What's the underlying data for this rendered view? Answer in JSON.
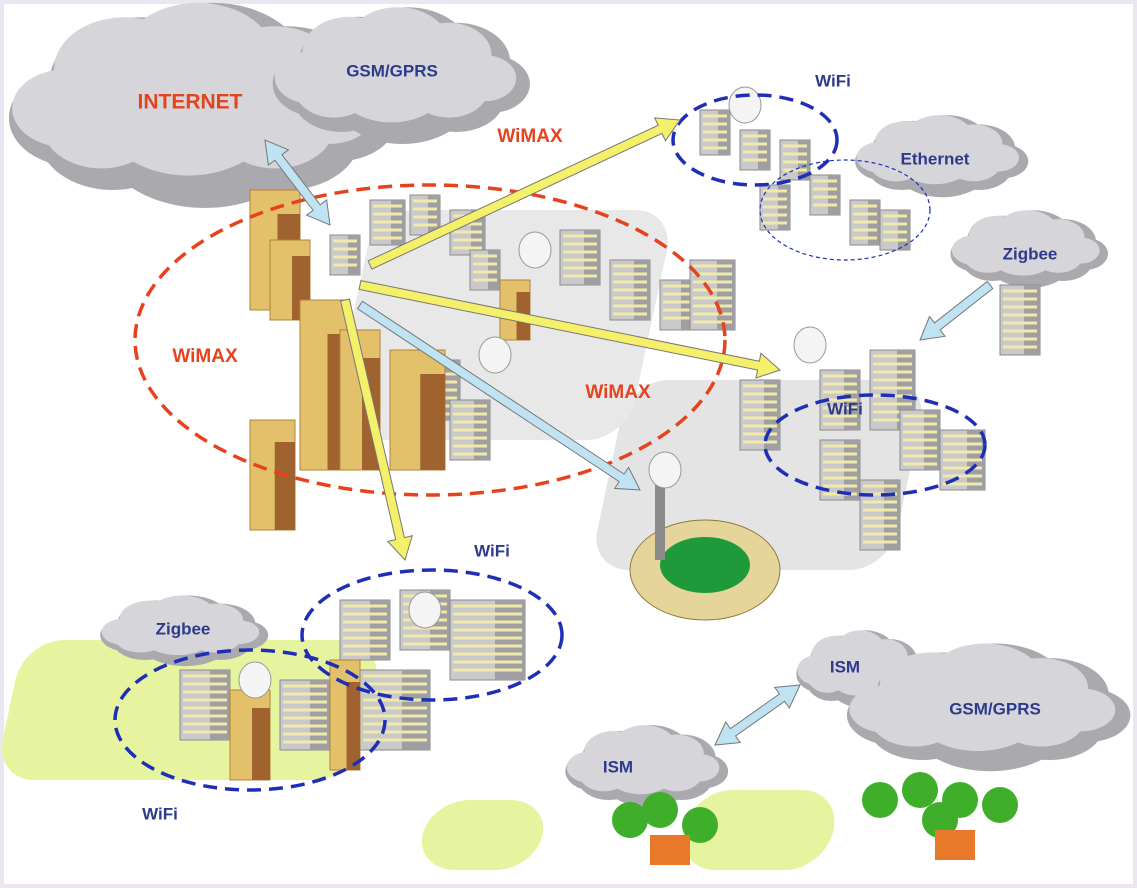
{
  "nodes": [
    {
      "label": "INTERNET"
    },
    {
      "label": "GSM/GPRS"
    },
    {
      "label": "WiMAX"
    },
    {
      "label": "WiFi"
    },
    {
      "label": "Ethernet"
    },
    {
      "label": "Zigbee"
    },
    {
      "label": "WiMAX"
    },
    {
      "label": "WiMAX"
    },
    {
      "label": "WiFi"
    },
    {
      "label": "WiFi"
    },
    {
      "label": "Zigbee"
    },
    {
      "label": "WiFi"
    },
    {
      "label": "ISM"
    },
    {
      "label": "ISM"
    },
    {
      "label": "GSM/GPRS"
    }
  ]
}
